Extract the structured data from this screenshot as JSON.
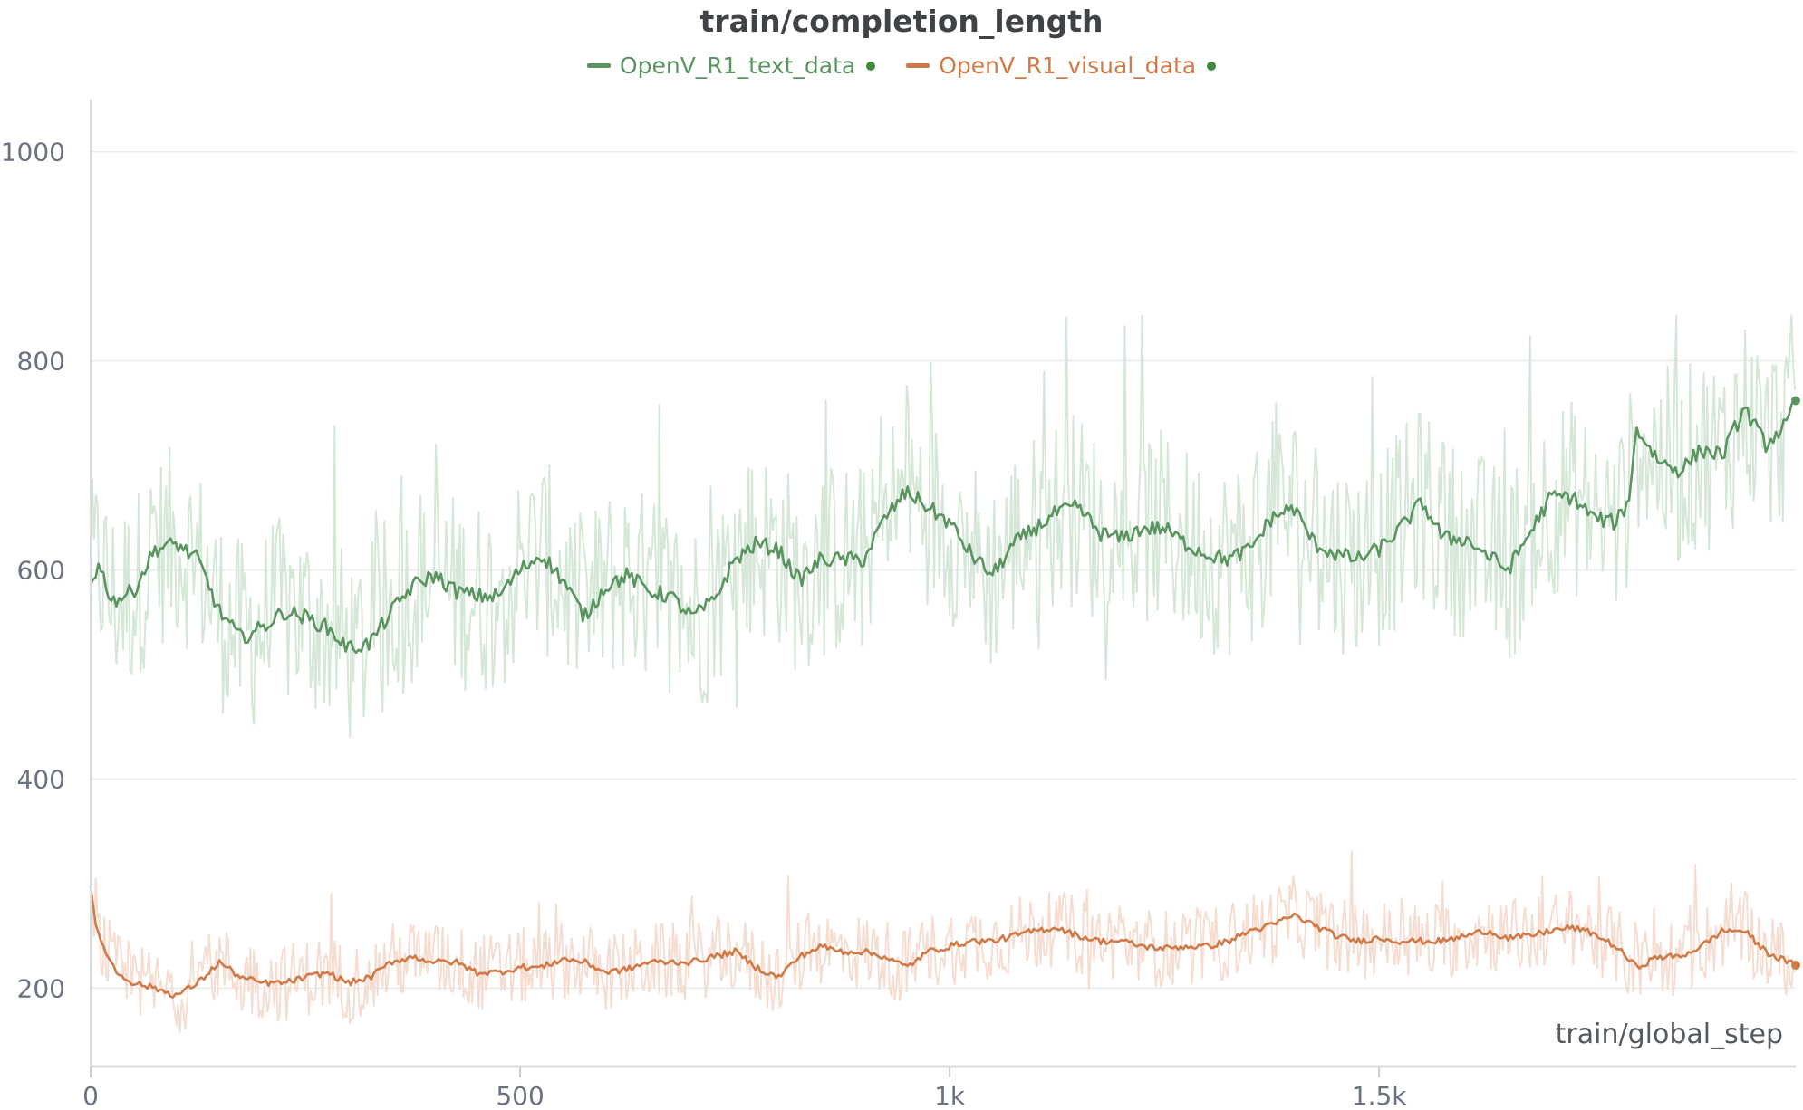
{
  "chart_data": {
    "type": "line",
    "title": "train/completion_length",
    "xlabel": "train/global_step",
    "ylabel": "",
    "xlim": [
      0,
      1985
    ],
    "ylim": [
      125,
      1050
    ],
    "x_ticks": [
      0,
      500,
      1000,
      1500
    ],
    "x_tick_labels": [
      "0",
      "500",
      "1k",
      "1.5k"
    ],
    "y_ticks": [
      200,
      400,
      600,
      800,
      1000
    ],
    "y_tick_labels": [
      "200",
      "400",
      "600",
      "800",
      "1000"
    ],
    "grid": true,
    "legend_position": "top-center",
    "series": [
      {
        "name": "OpenV_R1_text_data",
        "color": "#5a9460",
        "raw_color": "#d5e7d7",
        "x": [
          0,
          10,
          25,
          50,
          75,
          100,
          125,
          150,
          175,
          200,
          225,
          250,
          275,
          300,
          325,
          350,
          375,
          400,
          425,
          450,
          475,
          500,
          525,
          550,
          575,
          600,
          625,
          650,
          675,
          700,
          725,
          750,
          775,
          800,
          825,
          850,
          875,
          900,
          925,
          950,
          975,
          1000,
          1025,
          1050,
          1075,
          1100,
          1125,
          1150,
          1175,
          1200,
          1225,
          1250,
          1275,
          1300,
          1325,
          1350,
          1375,
          1400,
          1425,
          1450,
          1475,
          1500,
          1525,
          1550,
          1575,
          1600,
          1625,
          1650,
          1675,
          1700,
          1725,
          1750,
          1775,
          1790,
          1800,
          1825,
          1850,
          1875,
          1900,
          1925,
          1950,
          1975,
          1985
        ],
        "values": [
          590,
          605,
          570,
          580,
          620,
          625,
          610,
          560,
          535,
          545,
          560,
          555,
          545,
          525,
          530,
          560,
          585,
          595,
          580,
          575,
          575,
          600,
          615,
          590,
          555,
          585,
          595,
          580,
          575,
          555,
          570,
          610,
          625,
          620,
          590,
          610,
          610,
          610,
          650,
          675,
          660,
          645,
          615,
          595,
          625,
          640,
          655,
          660,
          635,
          630,
          640,
          640,
          625,
          615,
          610,
          620,
          650,
          660,
          625,
          615,
          610,
          620,
          640,
          665,
          630,
          630,
          615,
          600,
          635,
          670,
          670,
          650,
          645,
          665,
          735,
          705,
          695,
          715,
          710,
          755,
          720,
          740,
          762
        ],
        "noise_amplitude": 95
      },
      {
        "name": "OpenV_R1_visual_data",
        "color": "#d17a47",
        "raw_color": "#f6ddd1",
        "x": [
          0,
          5,
          15,
          30,
          50,
          75,
          100,
          125,
          150,
          175,
          200,
          225,
          250,
          275,
          300,
          325,
          350,
          375,
          400,
          425,
          450,
          475,
          500,
          525,
          550,
          575,
          600,
          625,
          650,
          675,
          700,
          725,
          750,
          775,
          800,
          825,
          850,
          875,
          900,
          925,
          950,
          975,
          1000,
          1025,
          1050,
          1075,
          1100,
          1125,
          1150,
          1175,
          1200,
          1225,
          1250,
          1275,
          1300,
          1325,
          1350,
          1375,
          1400,
          1425,
          1450,
          1475,
          1500,
          1525,
          1550,
          1575,
          1600,
          1625,
          1650,
          1675,
          1700,
          1725,
          1750,
          1775,
          1800,
          1825,
          1850,
          1875,
          1900,
          1925,
          1950,
          1975,
          1985
        ],
        "values": [
          300,
          260,
          240,
          215,
          205,
          200,
          193,
          205,
          225,
          210,
          205,
          205,
          210,
          215,
          205,
          210,
          225,
          230,
          225,
          225,
          215,
          215,
          220,
          220,
          228,
          225,
          215,
          218,
          225,
          225,
          225,
          230,
          235,
          220,
          210,
          230,
          240,
          235,
          235,
          230,
          220,
          235,
          240,
          245,
          245,
          250,
          255,
          258,
          250,
          245,
          245,
          240,
          238,
          240,
          240,
          245,
          255,
          260,
          270,
          260,
          250,
          245,
          248,
          245,
          245,
          245,
          250,
          255,
          248,
          250,
          255,
          258,
          252,
          240,
          220,
          230,
          230,
          240,
          255,
          255,
          235,
          225,
          222
        ],
        "noise_amplitude": 38
      }
    ]
  }
}
